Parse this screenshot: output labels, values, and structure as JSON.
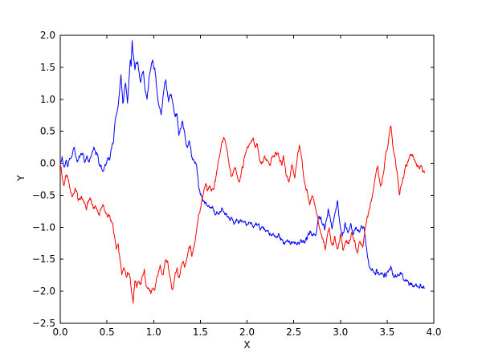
{
  "figure": {
    "background": "#ffffff",
    "axis_color": "#000000"
  },
  "chart_data": {
    "type": "line",
    "title": "",
    "xlabel": "X",
    "ylabel": "Y",
    "xlim": [
      0.0,
      4.0
    ],
    "ylim": [
      -2.5,
      2.0
    ],
    "grid": false,
    "legend": false,
    "xticks": {
      "values": [
        0.0,
        0.5,
        1.0,
        1.5,
        2.0,
        2.5,
        3.0,
        3.5,
        4.0
      ],
      "labels": [
        "0.0",
        "0.5",
        "1.0",
        "1.5",
        "2.0",
        "2.5",
        "3.0",
        "3.5",
        "4.0"
      ]
    },
    "yticks": {
      "values": [
        -2.5,
        -2.0,
        -1.5,
        -1.0,
        -0.5,
        0.0,
        0.5,
        1.0,
        1.5,
        2.0
      ],
      "labels": [
        "−2.5",
        "−2.0",
        "−1.5",
        "−1.0",
        "−0.5",
        "0.0",
        "0.5",
        "1.0",
        "1.5",
        "2.0"
      ]
    },
    "series": [
      {
        "name": "blue-random-walk",
        "color": "#0000ff",
        "x_start": 0.0,
        "x_end": 3.9,
        "waypoints": [
          [
            0.0,
            0.0
          ],
          [
            0.02,
            0.08
          ],
          [
            0.04,
            -0.03
          ],
          [
            0.06,
            0.06
          ],
          [
            0.08,
            -0.05
          ],
          [
            0.1,
            0.05
          ],
          [
            0.13,
            0.14
          ],
          [
            0.15,
            0.27
          ],
          [
            0.17,
            0.1
          ],
          [
            0.19,
            0.07
          ],
          [
            0.21,
            0.16
          ],
          [
            0.24,
            0.13
          ],
          [
            0.26,
            0.02
          ],
          [
            0.29,
            0.12
          ],
          [
            0.31,
            0.05
          ],
          [
            0.34,
            0.18
          ],
          [
            0.36,
            0.28
          ],
          [
            0.38,
            0.12
          ],
          [
            0.4,
            0.08
          ],
          [
            0.43,
            -0.05
          ],
          [
            0.46,
            -0.1
          ],
          [
            0.49,
            0.02
          ],
          [
            0.51,
            0.13
          ],
          [
            0.53,
            0.08
          ],
          [
            0.55,
            0.2
          ],
          [
            0.57,
            0.38
          ],
          [
            0.59,
            0.67
          ],
          [
            0.61,
            0.78
          ],
          [
            0.63,
            1.05
          ],
          [
            0.65,
            1.4
          ],
          [
            0.67,
            0.92
          ],
          [
            0.69,
            1.15
          ],
          [
            0.7,
            1.24
          ],
          [
            0.72,
            0.99
          ],
          [
            0.74,
            1.45
          ],
          [
            0.75,
            1.67
          ],
          [
            0.76,
            1.52
          ],
          [
            0.77,
            1.93
          ],
          [
            0.79,
            1.6
          ],
          [
            0.8,
            1.42
          ],
          [
            0.83,
            1.6
          ],
          [
            0.86,
            1.28
          ],
          [
            0.89,
            1.43
          ],
          [
            0.91,
            1.15
          ],
          [
            0.93,
            1.0
          ],
          [
            0.95,
            1.35
          ],
          [
            0.97,
            1.51
          ],
          [
            0.99,
            1.55
          ],
          [
            1.02,
            1.38
          ],
          [
            1.05,
            0.95
          ],
          [
            1.08,
            0.7
          ],
          [
            1.1,
            1.0
          ],
          [
            1.13,
            1.29
          ],
          [
            1.16,
            0.94
          ],
          [
            1.19,
            1.07
          ],
          [
            1.23,
            0.67
          ],
          [
            1.25,
            0.76
          ],
          [
            1.27,
            0.46
          ],
          [
            1.31,
            0.63
          ],
          [
            1.35,
            0.25
          ],
          [
            1.38,
            0.3
          ],
          [
            1.42,
            0.09
          ],
          [
            1.46,
            -0.08
          ],
          [
            1.48,
            -0.35
          ],
          [
            1.5,
            -0.52
          ],
          [
            1.53,
            -0.6
          ],
          [
            1.56,
            -0.66
          ],
          [
            1.6,
            -0.7
          ],
          [
            1.62,
            -0.66
          ],
          [
            1.66,
            -0.74
          ],
          [
            1.7,
            -0.78
          ],
          [
            1.73,
            -0.74
          ],
          [
            1.78,
            -0.85
          ],
          [
            1.84,
            -0.89
          ],
          [
            1.92,
            -0.92
          ],
          [
            2.0,
            -0.95
          ],
          [
            2.05,
            -0.97
          ],
          [
            2.1,
            -0.99
          ],
          [
            2.15,
            -1.02
          ],
          [
            2.2,
            -1.05
          ],
          [
            2.25,
            -1.09
          ],
          [
            2.3,
            -1.12
          ],
          [
            2.35,
            -1.17
          ],
          [
            2.4,
            -1.21
          ],
          [
            2.45,
            -1.22
          ],
          [
            2.5,
            -1.23
          ],
          [
            2.55,
            -1.24
          ],
          [
            2.6,
            -1.2
          ],
          [
            2.63,
            -1.2
          ],
          [
            2.67,
            -1.08
          ],
          [
            2.7,
            -1.15
          ],
          [
            2.74,
            -1.1
          ],
          [
            2.77,
            -0.83
          ],
          [
            2.8,
            -0.95
          ],
          [
            2.83,
            -1.05
          ],
          [
            2.87,
            -0.68
          ],
          [
            2.89,
            -0.85
          ],
          [
            2.91,
            -1.05
          ],
          [
            2.94,
            -0.8
          ],
          [
            2.97,
            -0.65
          ],
          [
            3.0,
            -1.0
          ],
          [
            3.02,
            -1.1
          ],
          [
            3.05,
            -0.95
          ],
          [
            3.08,
            -1.12
          ],
          [
            3.11,
            -0.95
          ],
          [
            3.14,
            -1.15
          ],
          [
            3.17,
            -0.98
          ],
          [
            3.2,
            -1.1
          ],
          [
            3.23,
            -0.95
          ],
          [
            3.25,
            -1.0
          ],
          [
            3.27,
            -1.18
          ],
          [
            3.29,
            -1.4
          ],
          [
            3.31,
            -1.62
          ],
          [
            3.34,
            -1.66
          ],
          [
            3.39,
            -1.73
          ],
          [
            3.42,
            -1.69
          ],
          [
            3.45,
            -1.76
          ],
          [
            3.49,
            -1.7
          ],
          [
            3.52,
            -1.63
          ],
          [
            3.54,
            -1.59
          ],
          [
            3.57,
            -1.78
          ],
          [
            3.61,
            -1.74
          ],
          [
            3.64,
            -1.68
          ],
          [
            3.66,
            -1.72
          ],
          [
            3.68,
            -1.81
          ],
          [
            3.72,
            -1.85
          ],
          [
            3.78,
            -1.88
          ],
          [
            3.84,
            -1.91
          ],
          [
            3.9,
            -1.94
          ]
        ]
      },
      {
        "name": "red-random-walk",
        "color": "#ff0000",
        "x_start": 0.0,
        "x_end": 3.9,
        "waypoints": [
          [
            0.0,
            0.0
          ],
          [
            0.02,
            -0.18
          ],
          [
            0.04,
            -0.33
          ],
          [
            0.06,
            -0.25
          ],
          [
            0.07,
            -0.2
          ],
          [
            0.09,
            -0.32
          ],
          [
            0.11,
            -0.45
          ],
          [
            0.13,
            -0.52
          ],
          [
            0.16,
            -0.42
          ],
          [
            0.18,
            -0.5
          ],
          [
            0.2,
            -0.6
          ],
          [
            0.22,
            -0.5
          ],
          [
            0.24,
            -0.54
          ],
          [
            0.26,
            -0.62
          ],
          [
            0.28,
            -0.7
          ],
          [
            0.31,
            -0.6
          ],
          [
            0.33,
            -0.57
          ],
          [
            0.35,
            -0.68
          ],
          [
            0.38,
            -0.72
          ],
          [
            0.41,
            -0.77
          ],
          [
            0.44,
            -0.7
          ],
          [
            0.46,
            -0.67
          ],
          [
            0.48,
            -0.75
          ],
          [
            0.5,
            -0.8
          ],
          [
            0.53,
            -0.83
          ],
          [
            0.56,
            -0.95
          ],
          [
            0.58,
            -1.1
          ],
          [
            0.6,
            -1.33
          ],
          [
            0.62,
            -1.28
          ],
          [
            0.64,
            -1.54
          ],
          [
            0.66,
            -1.71
          ],
          [
            0.68,
            -1.62
          ],
          [
            0.71,
            -1.77
          ],
          [
            0.73,
            -1.7
          ],
          [
            0.75,
            -1.85
          ],
          [
            0.78,
            -2.16
          ],
          [
            0.8,
            -1.85
          ],
          [
            0.82,
            -1.96
          ],
          [
            0.84,
            -1.85
          ],
          [
            0.86,
            -1.93
          ],
          [
            0.88,
            -1.75
          ],
          [
            0.9,
            -1.71
          ],
          [
            0.92,
            -1.89
          ],
          [
            0.95,
            -1.98
          ],
          [
            0.97,
            -2.03
          ],
          [
            0.99,
            -1.91
          ],
          [
            1.01,
            -2.0
          ],
          [
            1.04,
            -1.79
          ],
          [
            1.07,
            -1.62
          ],
          [
            1.1,
            -1.75
          ],
          [
            1.13,
            -1.5
          ],
          [
            1.15,
            -1.48
          ],
          [
            1.17,
            -1.71
          ],
          [
            1.19,
            -1.85
          ],
          [
            1.21,
            -1.91
          ],
          [
            1.23,
            -1.75
          ],
          [
            1.25,
            -1.64
          ],
          [
            1.27,
            -1.77
          ],
          [
            1.31,
            -1.54
          ],
          [
            1.33,
            -1.62
          ],
          [
            1.37,
            -1.35
          ],
          [
            1.39,
            -1.29
          ],
          [
            1.41,
            -1.41
          ],
          [
            1.44,
            -1.23
          ],
          [
            1.46,
            -1.05
          ],
          [
            1.48,
            -0.85
          ],
          [
            1.5,
            -0.7
          ],
          [
            1.52,
            -0.57
          ],
          [
            1.54,
            -0.42
          ],
          [
            1.56,
            -0.35
          ],
          [
            1.58,
            -0.4
          ],
          [
            1.6,
            -0.33
          ],
          [
            1.62,
            -0.45
          ],
          [
            1.64,
            -0.4
          ],
          [
            1.67,
            -0.15
          ],
          [
            1.7,
            0.05
          ],
          [
            1.72,
            0.25
          ],
          [
            1.75,
            0.43
          ],
          [
            1.78,
            0.2
          ],
          [
            1.8,
            0.05
          ],
          [
            1.83,
            -0.21
          ],
          [
            1.86,
            -0.1
          ],
          [
            1.88,
            -0.06
          ],
          [
            1.9,
            -0.2
          ],
          [
            1.92,
            -0.27
          ],
          [
            1.95,
            -0.1
          ],
          [
            1.98,
            0.1
          ],
          [
            2.02,
            0.3
          ],
          [
            2.06,
            0.36
          ],
          [
            2.09,
            0.25
          ],
          [
            2.11,
            0.32
          ],
          [
            2.13,
            0.1
          ],
          [
            2.15,
            -0.04
          ],
          [
            2.17,
            0.05
          ],
          [
            2.19,
            0.15
          ],
          [
            2.22,
            0.0
          ],
          [
            2.24,
            -0.08
          ],
          [
            2.26,
            0.05
          ],
          [
            2.28,
            0.11
          ],
          [
            2.32,
            0.17
          ],
          [
            2.35,
            0.05
          ],
          [
            2.37,
            0.02
          ],
          [
            2.39,
            0.13
          ],
          [
            2.42,
            -0.17
          ],
          [
            2.45,
            -0.27
          ],
          [
            2.48,
            -0.02
          ],
          [
            2.51,
            -0.23
          ],
          [
            2.54,
            0.1
          ],
          [
            2.56,
            0.3
          ],
          [
            2.59,
            0.0
          ],
          [
            2.62,
            -0.33
          ],
          [
            2.65,
            -0.49
          ],
          [
            2.67,
            -0.58
          ],
          [
            2.7,
            -0.49
          ],
          [
            2.73,
            -0.7
          ],
          [
            2.76,
            -0.85
          ],
          [
            2.79,
            -1.05
          ],
          [
            2.82,
            -1.2
          ],
          [
            2.84,
            -1.3
          ],
          [
            2.86,
            -1.1
          ],
          [
            2.88,
            -1.05
          ],
          [
            2.91,
            -1.33
          ],
          [
            2.94,
            -1.15
          ],
          [
            2.97,
            -1.3
          ],
          [
            3.0,
            -1.15
          ],
          [
            3.03,
            -1.35
          ],
          [
            3.06,
            -1.2
          ],
          [
            3.09,
            -1.3
          ],
          [
            3.12,
            -1.1
          ],
          [
            3.15,
            -1.25
          ],
          [
            3.18,
            -1.35
          ],
          [
            3.21,
            -1.2
          ],
          [
            3.24,
            -1.3
          ],
          [
            3.27,
            -1.0
          ],
          [
            3.3,
            -0.8
          ],
          [
            3.33,
            -0.58
          ],
          [
            3.36,
            -0.3
          ],
          [
            3.4,
            -0.05
          ],
          [
            3.43,
            -0.37
          ],
          [
            3.46,
            -0.2
          ],
          [
            3.49,
            0.15
          ],
          [
            3.52,
            0.38
          ],
          [
            3.54,
            0.57
          ],
          [
            3.56,
            0.3
          ],
          [
            3.58,
            0.1
          ],
          [
            3.61,
            -0.17
          ],
          [
            3.63,
            -0.48
          ],
          [
            3.66,
            -0.3
          ],
          [
            3.69,
            -0.1
          ],
          [
            3.72,
            0.05
          ],
          [
            3.75,
            0.17
          ],
          [
            3.78,
            0.1
          ],
          [
            3.81,
            0.0
          ],
          [
            3.84,
            -0.05
          ],
          [
            3.87,
            -0.02
          ],
          [
            3.9,
            -0.12
          ]
        ]
      }
    ]
  }
}
